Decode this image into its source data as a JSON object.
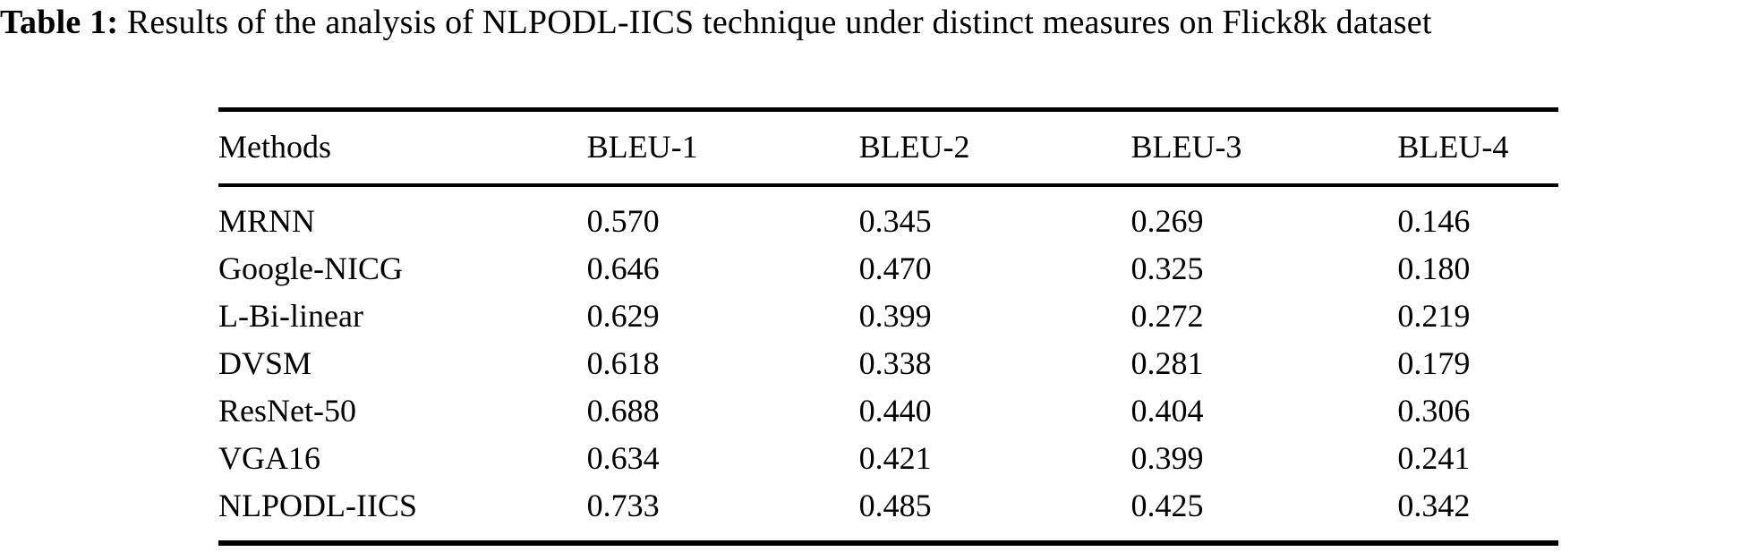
{
  "caption": {
    "label": "Table 1:",
    "text": "Results of the analysis of NLPODL-IICS technique under distinct measures on Flick8k dataset"
  },
  "table": {
    "headers": [
      "Methods",
      "BLEU-1",
      "BLEU-2",
      "BLEU-3",
      "BLEU-4"
    ],
    "rows": [
      [
        "MRNN",
        "0.570",
        "0.345",
        "0.269",
        "0.146"
      ],
      [
        "Google-NICG",
        "0.646",
        "0.470",
        "0.325",
        "0.180"
      ],
      [
        "L-Bi-linear",
        "0.629",
        "0.399",
        "0.272",
        "0.219"
      ],
      [
        "DVSM",
        "0.618",
        "0.338",
        "0.281",
        "0.179"
      ],
      [
        "ResNet-50",
        "0.688",
        "0.440",
        "0.404",
        "0.306"
      ],
      [
        "VGA16",
        "0.634",
        "0.421",
        "0.399",
        "0.241"
      ],
      [
        "NLPODL-IICS",
        "0.733",
        "0.485",
        "0.425",
        "0.342"
      ]
    ]
  }
}
